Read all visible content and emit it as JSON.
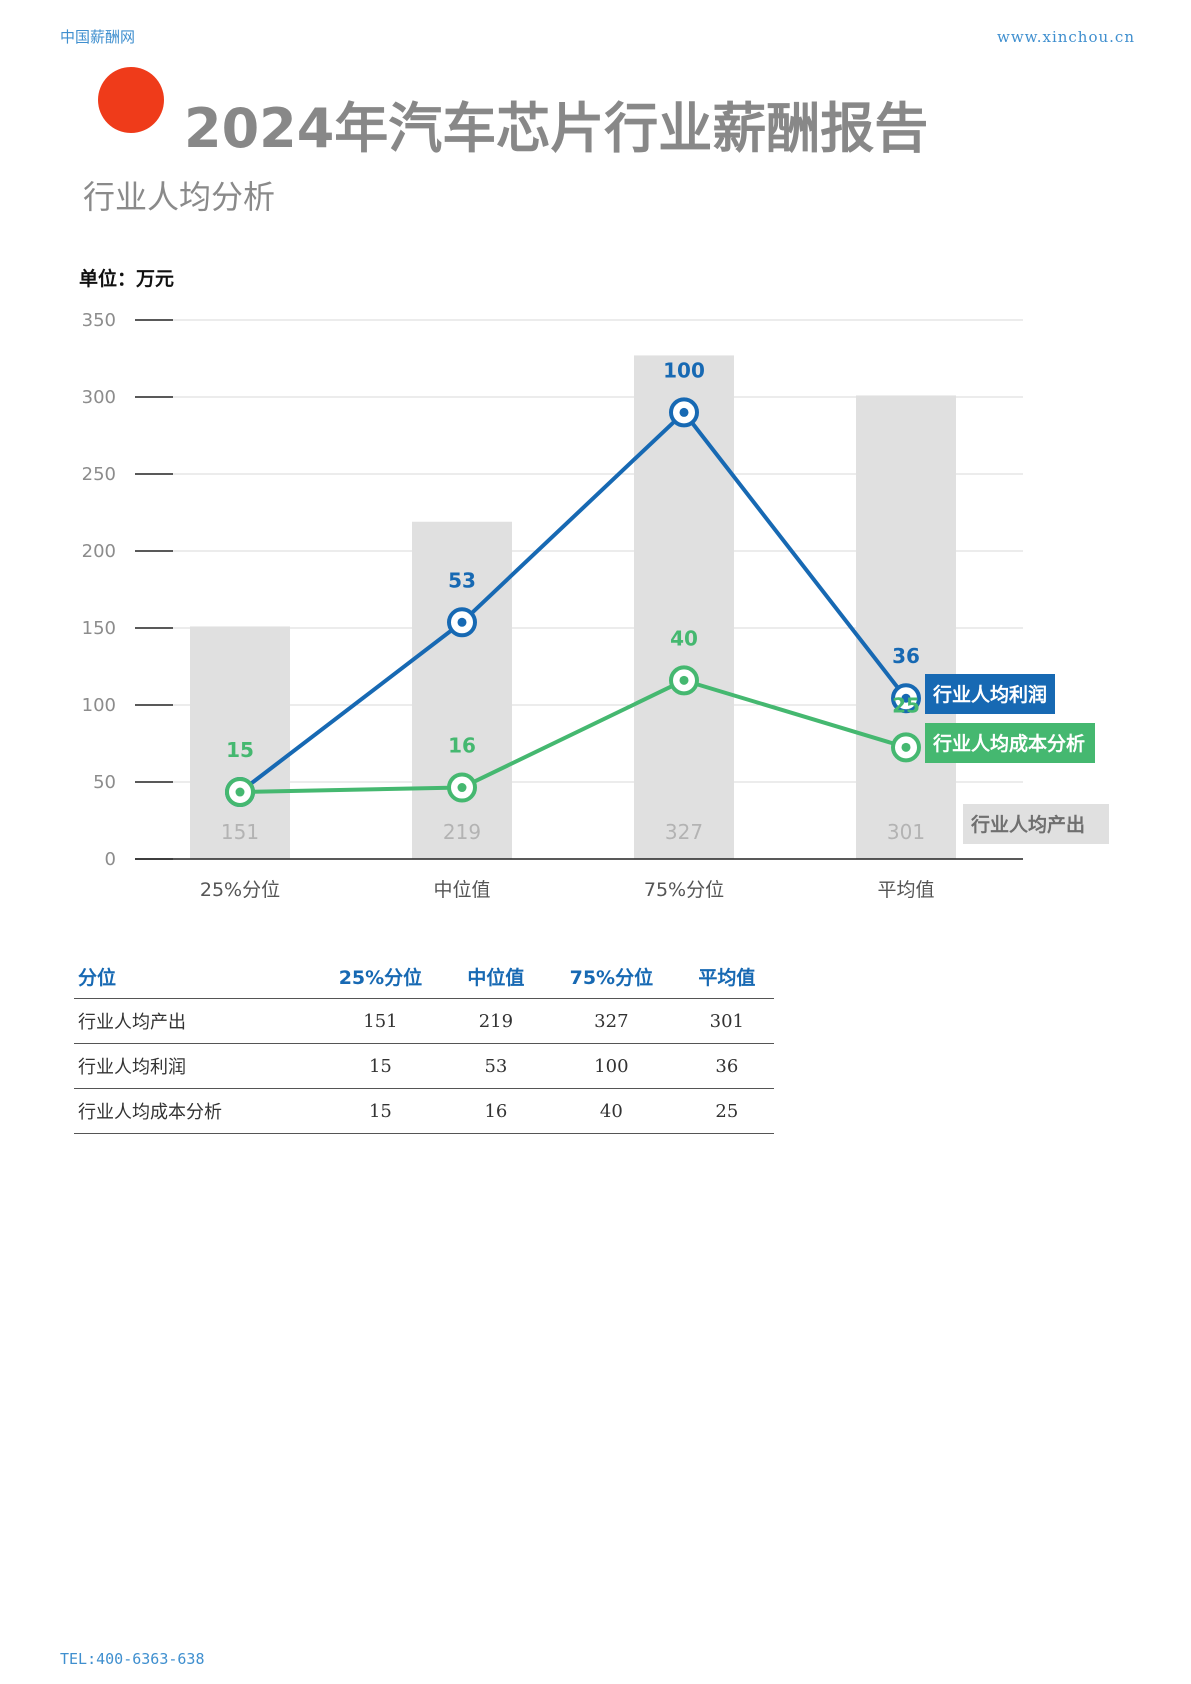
{
  "header": {
    "site_name": "中国薪酬网",
    "site_url": "www.xinchou.cn"
  },
  "title": "2024年汽车芯片行业薪酬报告",
  "subtitle": "行业人均分析",
  "unit_label": "单位：万元",
  "colors": {
    "accent_dot": "#ef3b1a",
    "profit": "#1769b3",
    "cost": "#45b870",
    "output_bar": "#e0e0e0"
  },
  "chart_data": {
    "type": "bar",
    "categories": [
      "25%分位",
      "中位值",
      "75%分位",
      "平均值"
    ],
    "ylim": [
      0,
      350
    ],
    "yticks": [
      0,
      50,
      100,
      150,
      200,
      250,
      300,
      350
    ],
    "grid": true,
    "series": [
      {
        "name": "行业人均产出",
        "type": "bar",
        "values": [
          151,
          219,
          327,
          301
        ]
      },
      {
        "name": "行业人均利润",
        "type": "line",
        "values": [
          15,
          53,
          100,
          36
        ]
      },
      {
        "name": "行业人均成本分析",
        "type": "line",
        "values": [
          15,
          16,
          40,
          25
        ]
      }
    ]
  },
  "table": {
    "headers": [
      "分位",
      "25%分位",
      "中位值",
      "75%分位",
      "平均值"
    ],
    "rows": [
      [
        "行业人均产出",
        "151",
        "219",
        "327",
        "301"
      ],
      [
        "行业人均利润",
        "15",
        "53",
        "100",
        "36"
      ],
      [
        "行业人均成本分析",
        "15",
        "16",
        "40",
        "25"
      ]
    ]
  },
  "footer": {
    "tel": "TEL:400-6363-638"
  }
}
